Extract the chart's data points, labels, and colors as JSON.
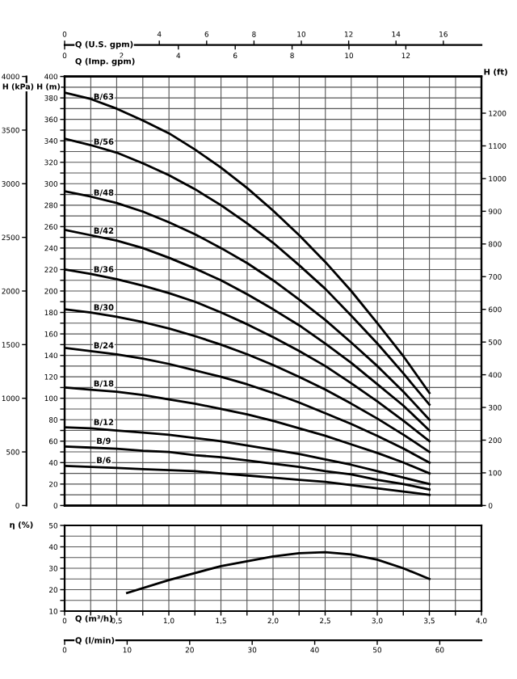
{
  "chart_data": [
    {
      "type": "line",
      "ylabel": "H (m)",
      "y2label": "H (ft)",
      "y3label": "H (kPa)",
      "xlabel": "Q (Imp. gpm)",
      "x2label": "Q (U.S. gpm)",
      "x": [
        0,
        0.92,
        1.83,
        2.75,
        3.67,
        4.58,
        5.5,
        6.42,
        7.33,
        8.25,
        9.17,
        10.08,
        11.0,
        11.92,
        12.83
      ],
      "series": [
        {
          "name": "B/63",
          "color": "#000000",
          "values": [
            385,
            379,
            370,
            359,
            347,
            332,
            315,
            296,
            275,
            252,
            227,
            200,
            170,
            139,
            105
          ]
        },
        {
          "name": "B/56",
          "color": "#000000",
          "values": [
            342,
            336,
            329,
            319,
            308,
            295,
            280,
            263,
            245,
            224,
            202,
            177,
            151,
            123,
            94
          ]
        },
        {
          "name": "B/48",
          "color": "#000000",
          "values": [
            293,
            288,
            282,
            274,
            264,
            253,
            240,
            226,
            210,
            192,
            173,
            152,
            130,
            106,
            80
          ]
        },
        {
          "name": "B/42",
          "color": "#000000",
          "values": [
            257,
            252,
            247,
            240,
            231,
            221,
            210,
            197,
            183,
            168,
            151,
            133,
            113,
            93,
            70
          ]
        },
        {
          "name": "B/36",
          "color": "#000000",
          "values": [
            220,
            216,
            211,
            205,
            198,
            190,
            180,
            169,
            157,
            144,
            130,
            114,
            97,
            79,
            60
          ]
        },
        {
          "name": "B/30",
          "color": "#000000",
          "values": [
            183,
            180,
            176,
            171,
            165,
            158,
            150,
            141,
            131,
            120,
            108,
            95,
            81,
            66,
            50
          ]
        },
        {
          "name": "B/24",
          "color": "#000000",
          "values": [
            147,
            144,
            141,
            137,
            132,
            126,
            120,
            113,
            105,
            96,
            86,
            76,
            65,
            53,
            40
          ]
        },
        {
          "name": "B/18",
          "color": "#000000",
          "values": [
            110,
            108,
            106,
            103,
            99,
            95,
            90,
            85,
            79,
            72,
            65,
            57,
            49,
            40,
            30
          ]
        },
        {
          "name": "B/12",
          "color": "#000000",
          "values": [
            73,
            72,
            70,
            68,
            66,
            63,
            60,
            56,
            52,
            48,
            43,
            38,
            32,
            26,
            20
          ]
        },
        {
          "name": "B/9",
          "color": "#000000",
          "values": [
            55,
            54,
            53,
            51,
            50,
            47,
            45,
            42,
            39,
            36,
            32,
            29,
            24,
            20,
            15
          ]
        },
        {
          "name": "B/6",
          "color": "#000000",
          "values": [
            37,
            36,
            35,
            34,
            33,
            32,
            30,
            28,
            26,
            24,
            22,
            19,
            16,
            13,
            10
          ]
        }
      ],
      "xlim": [
        0,
        14.66
      ],
      "xticks": [
        0,
        2,
        4,
        6,
        8,
        10,
        12
      ],
      "ylim": [
        0,
        400
      ],
      "yticks": [
        0,
        {
          "value": 10,
          "label": null
        },
        20,
        {
          "value": 30,
          "label": null
        },
        40,
        {
          "value": 50,
          "label": null
        },
        60,
        {
          "value": 70,
          "label": null
        },
        80,
        {
          "value": 90,
          "label": null
        },
        100,
        {
          "value": 110,
          "label": null
        },
        120,
        {
          "value": 130,
          "label": null
        },
        140,
        {
          "value": 150,
          "label": null
        },
        160,
        {
          "value": 170,
          "label": null
        },
        180,
        {
          "value": 190,
          "label": null
        },
        200,
        {
          "value": 210,
          "label": null
        },
        220,
        {
          "value": 230,
          "label": null
        },
        240,
        {
          "value": 250,
          "label": null
        },
        260,
        {
          "value": 270,
          "label": null
        },
        280,
        {
          "value": 290,
          "label": null
        },
        300,
        {
          "value": 310,
          "label": null
        },
        320,
        {
          "value": 330,
          "label": null
        },
        340,
        {
          "value": 350,
          "label": null
        },
        360,
        {
          "value": 370,
          "label": null
        },
        380,
        {
          "value": 390,
          "label": null
        },
        400
      ],
      "y2lim": [
        0,
        1312.3
      ],
      "y2ticks": [
        0,
        100,
        200,
        300,
        400,
        500,
        600,
        700,
        800,
        900,
        1000,
        1100,
        1200
      ],
      "y3lim": [
        0,
        4000
      ],
      "y3ticks": [
        0,
        500,
        1000,
        1500,
        2000,
        2500,
        3000,
        3500,
        4000
      ],
      "x2lim": [
        0,
        17.61
      ],
      "x2ticks": [
        0,
        4,
        6,
        8,
        10,
        12,
        14,
        16
      ],
      "ref_lines": [
        {
          "axis": "x",
          "value": 0.92,
          "color": "#555555"
        },
        {
          "axis": "x",
          "value": 1.83,
          "color": "#555555"
        },
        {
          "axis": "x",
          "value": 2.75,
          "color": "#555555"
        },
        {
          "axis": "x",
          "value": 3.67,
          "color": "#555555"
        },
        {
          "axis": "x",
          "value": 4.58,
          "color": "#555555"
        },
        {
          "axis": "x",
          "value": 5.5,
          "color": "#555555"
        },
        {
          "axis": "x",
          "value": 6.42,
          "color": "#555555"
        },
        {
          "axis": "x",
          "value": 7.33,
          "color": "#555555"
        },
        {
          "axis": "x",
          "value": 8.25,
          "color": "#555555"
        },
        {
          "axis": "x",
          "value": 9.17,
          "color": "#555555"
        },
        {
          "axis": "x",
          "value": 10.08,
          "color": "#555555"
        },
        {
          "axis": "x",
          "value": 11.0,
          "color": "#555555"
        },
        {
          "axis": "x",
          "value": 11.92,
          "color": "#555555"
        },
        {
          "axis": "x",
          "value": 12.83,
          "color": "#555555"
        },
        {
          "axis": "x",
          "value": 13.75,
          "color": "#555555"
        }
      ],
      "grid": "y",
      "legend": false,
      "marker": "none",
      "line_style": "solid"
    },
    {
      "type": "line",
      "ylabel": "η (%)",
      "xlabel": "Q (m³/h)",
      "x2label": "Q (l/min)",
      "series": [
        {
          "color": "#000000",
          "x": [
            0.6,
            1.0,
            1.5,
            2.0,
            2.25,
            2.5,
            2.75,
            3.0,
            3.25,
            3.5
          ],
          "values": [
            18.5,
            24.5,
            31,
            35.5,
            37,
            37.5,
            36.5,
            34,
            30,
            25
          ]
        }
      ],
      "xlim": [
        0,
        4.0
      ],
      "xticks": [
        0,
        {
          "value": 0.25,
          "label": null
        },
        {
          "value": 0.5,
          "label": "0,5"
        },
        {
          "value": 0.75,
          "label": null
        },
        {
          "value": 1.0,
          "label": "1,0"
        },
        {
          "value": 1.25,
          "label": null
        },
        {
          "value": 1.5,
          "label": "1,5"
        },
        {
          "value": 1.75,
          "label": null
        },
        {
          "value": 2.0,
          "label": "2,0"
        },
        {
          "value": 2.25,
          "label": null
        },
        {
          "value": 2.5,
          "label": "2,5"
        },
        {
          "value": 2.75,
          "label": null
        },
        {
          "value": 3.0,
          "label": "3,0"
        },
        {
          "value": 3.25,
          "label": null
        },
        {
          "value": 3.5,
          "label": "3,5"
        },
        {
          "value": 3.75,
          "label": null
        },
        {
          "value": 4.0,
          "label": "4,0"
        }
      ],
      "ylim": [
        10,
        50
      ],
      "yticks": [
        10,
        {
          "value": 15,
          "label": null
        },
        20,
        {
          "value": 25,
          "label": null
        },
        30,
        {
          "value": 35,
          "label": null
        },
        40,
        {
          "value": 45,
          "label": null
        },
        50
      ],
      "x2lim": [
        0,
        66.67
      ],
      "x2ticks": [
        0,
        10,
        20,
        30,
        40,
        50,
        60
      ],
      "grid": true,
      "legend": false,
      "marker": "none",
      "line_style": "solid"
    }
  ]
}
